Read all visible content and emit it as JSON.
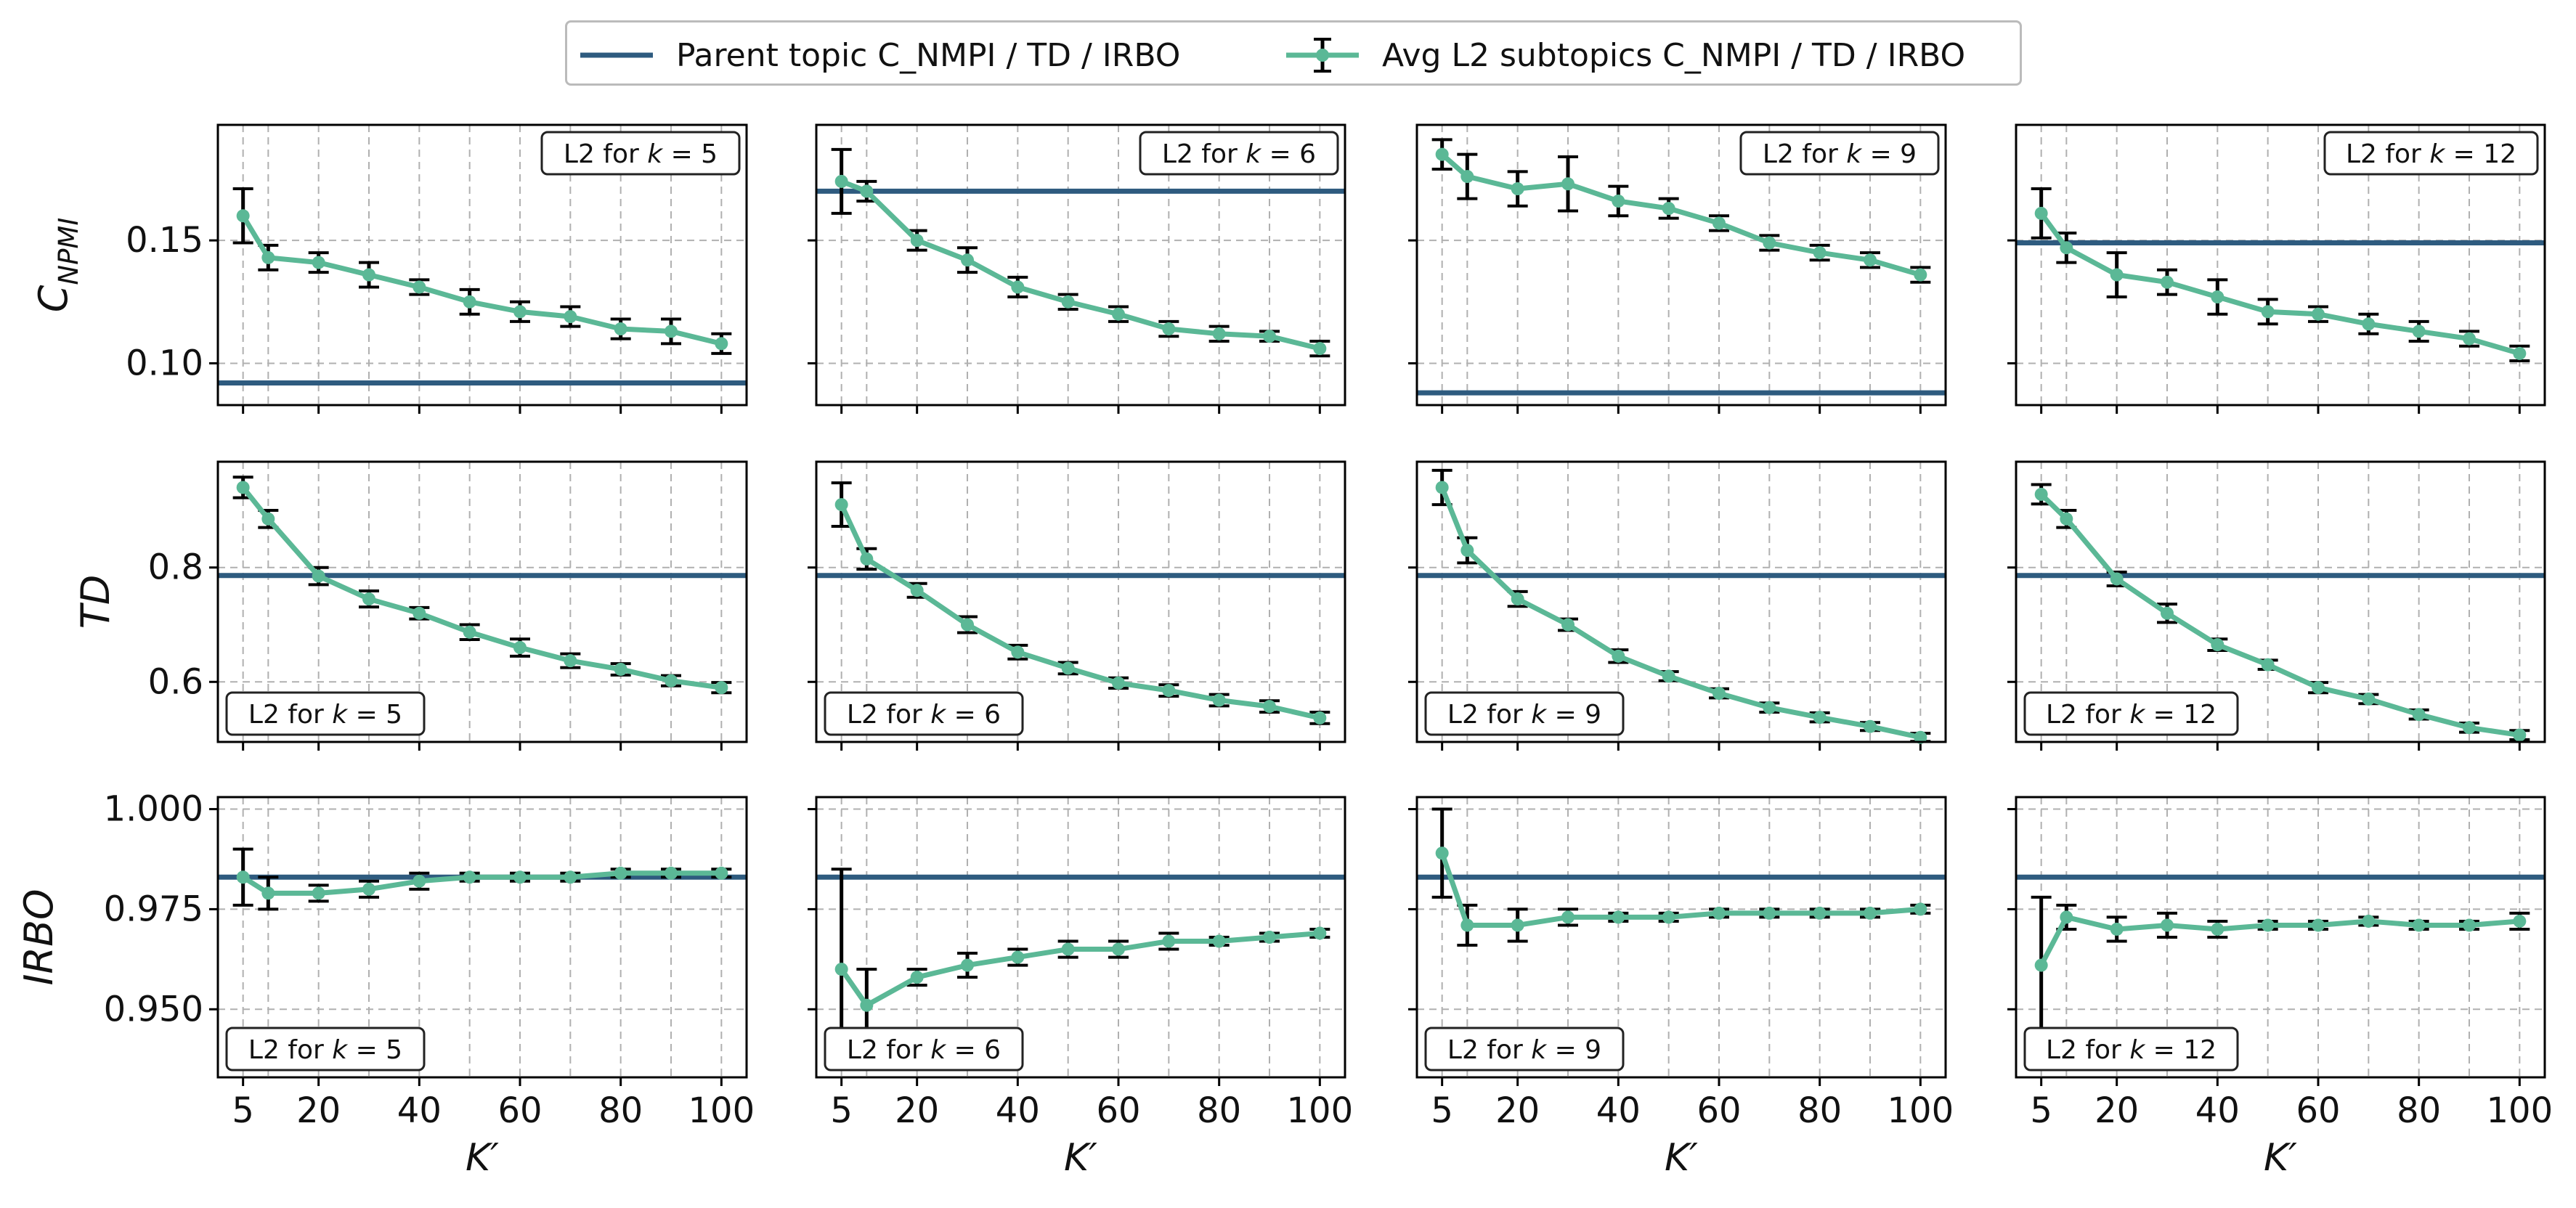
{
  "colors": {
    "parent": "#2e5b7f",
    "avg": "#5bb896",
    "error": "#000000",
    "grid": "#b0b0b0"
  },
  "legend": {
    "parent_label": "Parent topic C_NMPI / TD / IRBO",
    "avg_label": "Avg L2 subtopics C_NMPI / TD / IRBO"
  },
  "chart_data": {
    "type": "line",
    "x": [
      5,
      10,
      20,
      30,
      40,
      50,
      60,
      70,
      80,
      90,
      100
    ],
    "xticks": [
      "5",
      "20",
      "40",
      "60",
      "80",
      "100"
    ],
    "xlabel": "K′",
    "xlim": [
      0,
      105
    ],
    "grid": true,
    "legend_position": "top-center",
    "row_ylabels": [
      "C_NPMI",
      "TD",
      "IRBO"
    ],
    "ylims": [
      [
        0.083,
        0.197
      ],
      [
        0.495,
        0.985
      ],
      [
        0.933,
        1.003
      ]
    ],
    "yticks": [
      [
        "0.10",
        "0.15"
      ],
      [
        "0.6",
        "0.8"
      ],
      [
        "0.950",
        "0.975",
        "1.000"
      ]
    ],
    "columns": [
      {
        "panel_label": "L2 for k = 5",
        "parent": [
          0.092,
          0.786,
          0.983
        ],
        "avg": [
          [
            0.16,
            0.143,
            0.141,
            0.136,
            0.131,
            0.125,
            0.121,
            0.119,
            0.114,
            0.113,
            0.108
          ],
          [
            0.94,
            0.885,
            0.785,
            0.745,
            0.72,
            0.687,
            0.66,
            0.637,
            0.622,
            0.602,
            0.59
          ],
          [
            0.983,
            0.979,
            0.979,
            0.98,
            0.982,
            0.983,
            0.983,
            0.983,
            0.984,
            0.984,
            0.984
          ]
        ],
        "err": [
          [
            0.011,
            0.005,
            0.004,
            0.005,
            0.003,
            0.005,
            0.004,
            0.004,
            0.004,
            0.005,
            0.004
          ],
          [
            0.018,
            0.015,
            0.015,
            0.014,
            0.01,
            0.013,
            0.015,
            0.012,
            0.01,
            0.009,
            0.009
          ],
          [
            0.007,
            0.004,
            0.002,
            0.002,
            0.002,
            0.001,
            0.001,
            0.001,
            0.001,
            0.001,
            0.001
          ]
        ]
      },
      {
        "panel_label": "L2 for k = 6",
        "parent": [
          0.17,
          0.786,
          0.983
        ],
        "avg": [
          [
            0.174,
            0.17,
            0.15,
            0.142,
            0.131,
            0.125,
            0.12,
            0.114,
            0.112,
            0.111,
            0.106
          ],
          [
            0.91,
            0.815,
            0.76,
            0.7,
            0.652,
            0.624,
            0.598,
            0.585,
            0.568,
            0.557,
            0.537
          ],
          [
            0.96,
            0.951,
            0.958,
            0.961,
            0.963,
            0.965,
            0.965,
            0.967,
            0.967,
            0.968,
            0.969
          ]
        ],
        "err": [
          [
            0.013,
            0.004,
            0.004,
            0.005,
            0.004,
            0.003,
            0.003,
            0.003,
            0.003,
            0.002,
            0.003
          ],
          [
            0.038,
            0.018,
            0.012,
            0.014,
            0.012,
            0.01,
            0.009,
            0.01,
            0.01,
            0.01,
            0.01
          ],
          [
            0.025,
            0.009,
            0.002,
            0.003,
            0.002,
            0.002,
            0.002,
            0.002,
            0.001,
            0.001,
            0.001
          ]
        ]
      },
      {
        "panel_label": "L2 for k = 9",
        "parent": [
          0.088,
          0.786,
          0.983
        ],
        "avg": [
          [
            0.185,
            0.176,
            0.171,
            0.173,
            0.166,
            0.163,
            0.157,
            0.149,
            0.145,
            0.142,
            0.136
          ],
          [
            0.94,
            0.83,
            0.745,
            0.7,
            0.645,
            0.61,
            0.58,
            0.555,
            0.538,
            0.522,
            0.503
          ],
          [
            0.989,
            0.971,
            0.971,
            0.973,
            0.973,
            0.973,
            0.974,
            0.974,
            0.974,
            0.974,
            0.975
          ]
        ],
        "err": [
          [
            0.006,
            0.009,
            0.007,
            0.011,
            0.006,
            0.004,
            0.003,
            0.003,
            0.003,
            0.003,
            0.003
          ],
          [
            0.03,
            0.022,
            0.013,
            0.01,
            0.011,
            0.008,
            0.008,
            0.008,
            0.008,
            0.007,
            0.007
          ],
          [
            0.011,
            0.005,
            0.004,
            0.002,
            0.001,
            0.001,
            0.001,
            0.001,
            0.001,
            0.001,
            0.001
          ]
        ]
      },
      {
        "panel_label": "L2 for k = 12",
        "parent": [
          0.149,
          0.786,
          0.983
        ],
        "avg": [
          [
            0.161,
            0.147,
            0.136,
            0.133,
            0.127,
            0.121,
            0.12,
            0.116,
            0.113,
            0.11,
            0.104
          ],
          [
            0.928,
            0.885,
            0.78,
            0.72,
            0.665,
            0.63,
            0.59,
            0.57,
            0.543,
            0.52,
            0.507
          ],
          [
            0.961,
            0.973,
            0.97,
            0.971,
            0.97,
            0.971,
            0.971,
            0.972,
            0.971,
            0.971,
            0.972
          ]
        ],
        "err": [
          [
            0.01,
            0.006,
            0.009,
            0.005,
            0.007,
            0.005,
            0.003,
            0.004,
            0.004,
            0.003,
            0.003
          ],
          [
            0.017,
            0.015,
            0.012,
            0.016,
            0.01,
            0.008,
            0.009,
            0.008,
            0.008,
            0.008,
            0.008
          ],
          [
            0.017,
            0.003,
            0.003,
            0.003,
            0.002,
            0.001,
            0.001,
            0.001,
            0.001,
            0.001,
            0.002
          ]
        ]
      }
    ]
  }
}
